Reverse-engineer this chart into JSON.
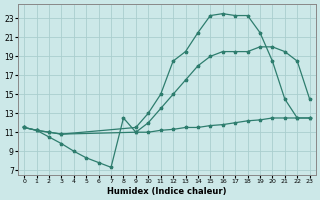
{
  "background_color": "#cce8e8",
  "grid_color": "#aacece",
  "line_color": "#2e7d6e",
  "xlabel": "Humidex (Indice chaleur)",
  "xlim": [
    -0.5,
    23.5
  ],
  "ylim": [
    6.5,
    24.5
  ],
  "yticks": [
    7,
    9,
    11,
    13,
    15,
    17,
    19,
    21,
    23
  ],
  "xticks": [
    0,
    1,
    2,
    3,
    4,
    5,
    6,
    7,
    8,
    9,
    10,
    11,
    12,
    13,
    14,
    15,
    16,
    17,
    18,
    19,
    20,
    21,
    22,
    23
  ],
  "curve_top_x": [
    0,
    1,
    2,
    3,
    9,
    10,
    11,
    12,
    13,
    14,
    15,
    16,
    17,
    18,
    19,
    20,
    21,
    22,
    23
  ],
  "curve_top_y": [
    11.5,
    11.2,
    11.0,
    10.8,
    11.5,
    13.0,
    15.0,
    18.5,
    19.5,
    21.5,
    23.3,
    23.5,
    23.3,
    23.3,
    21.5,
    18.5,
    14.5,
    12.5,
    12.5
  ],
  "curve_mid_x": [
    0,
    1,
    2,
    3,
    9,
    10,
    11,
    12,
    13,
    14,
    15,
    16,
    17,
    18,
    19,
    20,
    21,
    22,
    23
  ],
  "curve_mid_y": [
    11.5,
    11.2,
    11.0,
    10.8,
    11.0,
    12.0,
    13.5,
    15.0,
    16.5,
    18.0,
    19.0,
    19.5,
    19.5,
    19.5,
    20.0,
    20.0,
    19.5,
    18.5,
    14.5
  ],
  "curve_bot_x": [
    0,
    1,
    2,
    3,
    4,
    5,
    6,
    7,
    8,
    9,
    10,
    11,
    12,
    13,
    14,
    15,
    16,
    17,
    18,
    19,
    20,
    21,
    22,
    23
  ],
  "curve_bot_y": [
    11.5,
    11.2,
    10.5,
    9.8,
    9.0,
    8.3,
    7.8,
    7.3,
    12.5,
    11.0,
    11.0,
    11.2,
    11.3,
    11.5,
    11.5,
    11.7,
    11.8,
    12.0,
    12.2,
    12.3,
    12.5,
    12.5,
    12.5,
    12.5
  ]
}
